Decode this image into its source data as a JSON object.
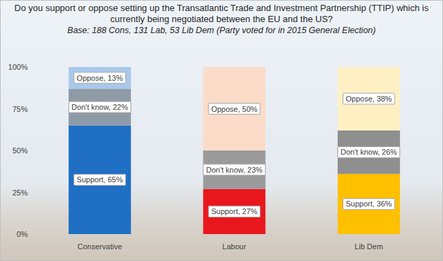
{
  "chart_data": {
    "type": "bar",
    "title": "Do you support or oppose setting up the Transatlantic Trade and Investment Partnership (TTIP) which is currently being negotiated between the EU and the US?",
    "subtitle": "Base: 188 Cons, 131 Lab, 53 Lib Dem (Party voted for in 2015 General Election)",
    "categories": [
      "Conservative",
      "Labour",
      "Lib Dem"
    ],
    "stacked": true,
    "data_labels": true,
    "grid": false,
    "ylim": [
      0,
      100
    ],
    "yticks": [
      {
        "value": 0,
        "label": "0%"
      },
      {
        "value": 25,
        "label": "25%"
      },
      {
        "value": 50,
        "label": "50%"
      },
      {
        "value": 75,
        "label": "75%"
      },
      {
        "value": 100,
        "label": "100%"
      }
    ],
    "series": [
      {
        "name": "Support",
        "values": [
          65,
          27,
          36
        ],
        "value_labels": [
          "Support, 65%",
          "Support, 27%",
          "Support, 36%"
        ],
        "colors": [
          "#1f6fc5",
          "#e8171d",
          "#ffc000"
        ]
      },
      {
        "name": "Don't know",
        "values": [
          22,
          23,
          26
        ],
        "value_labels": [
          "Don't know, 22%",
          "Don't know, 23%",
          "Don't know, 26%"
        ],
        "colors": [
          "#8e9aa6",
          "#9a9a9a",
          "#8f8f8f"
        ]
      },
      {
        "name": "Oppose",
        "values": [
          13,
          50,
          38
        ],
        "value_labels": [
          "Oppose, 13%",
          "Oppose, 50%",
          "Oppose, 38%"
        ],
        "colors": [
          "#a9c9ec",
          "#fbdcc8",
          "#fff0c4"
        ]
      }
    ]
  }
}
